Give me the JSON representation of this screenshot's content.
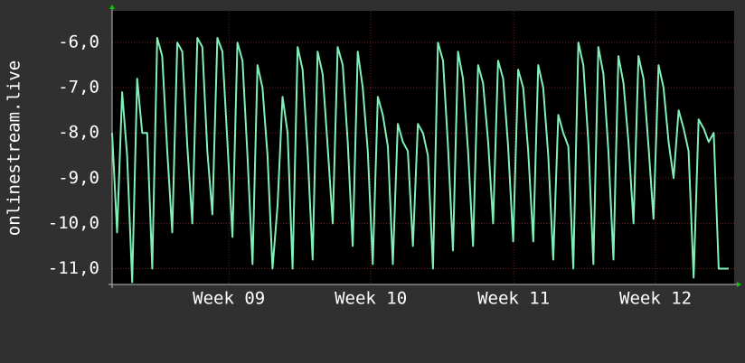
{
  "chart_data": {
    "type": "line",
    "ylabel": "onlinestream.live",
    "ylim": [
      -11.35,
      -5.3
    ],
    "yticks": [
      {
        "value": -6,
        "label": "-6,0"
      },
      {
        "value": -7,
        "label": "-7,0"
      },
      {
        "value": -8,
        "label": "-8,0"
      },
      {
        "value": -9,
        "label": "-9,0"
      },
      {
        "value": -10,
        "label": "-10,0"
      },
      {
        "value": -11,
        "label": "-11,0"
      }
    ],
    "xlim": [
      0,
      123
    ],
    "xticks": [
      {
        "value": 23.3,
        "label": "Week 09"
      },
      {
        "value": 51.6,
        "label": "Week 10"
      },
      {
        "value": 80.1,
        "label": "Week 11"
      },
      {
        "value": 108.4,
        "label": "Week 12"
      }
    ],
    "grid": true,
    "color": "#80f0b8",
    "values": [
      -8,
      -10.2,
      -7.1,
      -8.5,
      -11.3,
      -6.8,
      -8,
      -8,
      -11,
      -5.9,
      -6.3,
      -8.4,
      -10.2,
      -6,
      -6.2,
      -8.3,
      -10,
      -5.9,
      -6.1,
      -8.4,
      -9.8,
      -5.9,
      -6.2,
      -8.2,
      -10.3,
      -6,
      -6.4,
      -8.5,
      -10.9,
      -6.5,
      -7,
      -8.5,
      -11,
      -9.6,
      -7.2,
      -8,
      -11,
      -6.1,
      -6.6,
      -8.4,
      -10.8,
      -6.2,
      -6.7,
      -8.3,
      -10,
      -6.1,
      -6.5,
      -8.2,
      -10.5,
      -6.2,
      -7,
      -8.4,
      -10.9,
      -7.2,
      -7.6,
      -8.3,
      -10.9,
      -7.8,
      -8.2,
      -8.4,
      -10.5,
      -7.8,
      -8,
      -8.5,
      -11,
      -6,
      -6.4,
      -8.3,
      -10.6,
      -6.2,
      -6.8,
      -8.4,
      -10.5,
      -6.5,
      -6.9,
      -8.2,
      -10,
      -6.4,
      -6.8,
      -8.3,
      -10.4,
      -6.6,
      -7,
      -8.4,
      -10.4,
      -6.5,
      -7,
      -8.5,
      -10.8,
      -7.6,
      -8,
      -8.3,
      -11,
      -6,
      -6.5,
      -8.2,
      -10.9,
      -6.1,
      -6.7,
      -8.4,
      -10.8,
      -6.3,
      -6.9,
      -8.2,
      -10,
      -6.3,
      -6.8,
      -8.3,
      -9.9,
      -6.5,
      -7,
      -8.2,
      -9,
      -7.5,
      -7.9,
      -8.4,
      -11.2,
      -7.7,
      -7.9,
      -8.2,
      -8,
      -11,
      -11,
      -11
    ]
  }
}
